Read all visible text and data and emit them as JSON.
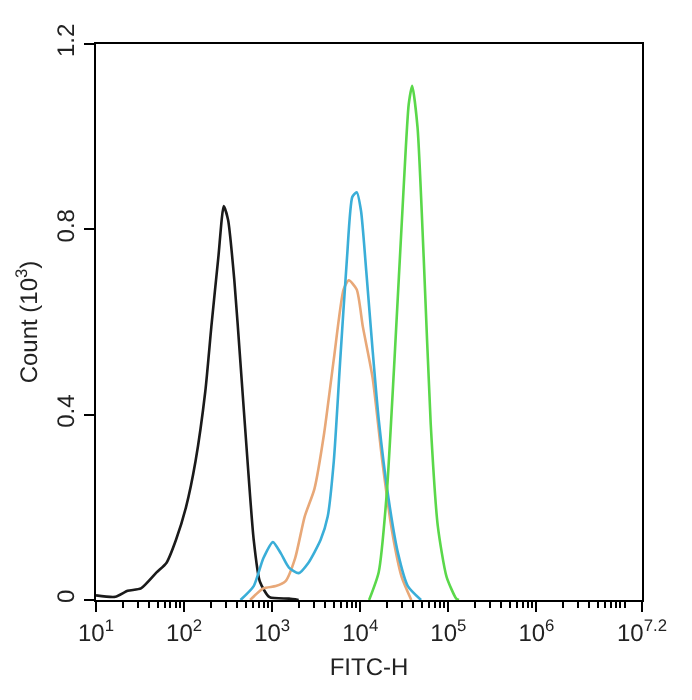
{
  "chart_data": {
    "type": "line",
    "xlabel": "FITC-H",
    "ylabel": "Count (10$^{3}$)",
    "log": "x",
    "xlim": [
      10,
      15800000
    ],
    "ylim": [
      0,
      1.2
    ],
    "xticks": [
      {
        "value": 10,
        "label": "10$^{1}$"
      },
      {
        "value": 100,
        "label": "10$^{2}$"
      },
      {
        "value": 1000,
        "label": "10$^{3}$"
      },
      {
        "value": 10000,
        "label": "10$^{4}$"
      },
      {
        "value": 100000,
        "label": "10$^{5}$"
      },
      {
        "value": 1000000,
        "label": "10$^{6}$"
      },
      {
        "value": 15800000,
        "label": "10$^{7.2}$"
      }
    ],
    "yticks": [
      0,
      0.4,
      0.8,
      1.2
    ],
    "marker": "none",
    "line_style": "solid",
    "series": [
      {
        "color": "#1a1a1a",
        "x": [
          10,
          16.6,
          22.9,
          32.4,
          49,
          63,
          81,
          105,
          135,
          174,
          204,
          245,
          282,
          316,
          372,
          437,
          525,
          617,
          724,
          933,
          1550,
          2000
        ],
        "values": [
          0.01,
          0.007,
          0.02,
          0.025,
          0.06,
          0.08,
          0.13,
          0.2,
          0.3,
          0.45,
          0.59,
          0.74,
          0.85,
          0.82,
          0.69,
          0.51,
          0.3,
          0.13,
          0.04,
          0.006,
          0.003,
          0
        ]
      },
      {
        "color": "#e8a878",
        "x": [
          562,
          794,
          1100,
          1410,
          1820,
          2340,
          3020,
          3890,
          5010,
          6460,
          7410,
          9120,
          10700,
          13800,
          17800,
          22900,
          29500,
          38000
        ],
        "values": [
          0,
          0.025,
          0.03,
          0.04,
          0.09,
          0.18,
          0.24,
          0.36,
          0.52,
          0.67,
          0.69,
          0.67,
          0.59,
          0.48,
          0.3,
          0.15,
          0.05,
          0
        ]
      },
      {
        "color": "#3aaed8",
        "x": [
          437,
          617,
          794,
          1020,
          1260,
          1550,
          2000,
          2570,
          3550,
          4270,
          5010,
          5890,
          7080,
          8130,
          9120,
          10200,
          11700,
          13800,
          16200,
          20900,
          26900,
          34700,
          49000
        ],
        "values": [
          0,
          0.03,
          0.09,
          0.125,
          0.1,
          0.07,
          0.058,
          0.08,
          0.13,
          0.18,
          0.3,
          0.51,
          0.74,
          0.87,
          0.88,
          0.84,
          0.71,
          0.54,
          0.39,
          0.22,
          0.1,
          0.03,
          0
        ]
      },
      {
        "color": "#5ad84a",
        "x": [
          12600,
          16200,
          20000,
          24500,
          30900,
          35500,
          38900,
          44700,
          52500,
          63100,
          75900,
          95500,
          123000,
          132000
        ],
        "values": [
          0,
          0.06,
          0.23,
          0.52,
          0.88,
          1.07,
          1.11,
          1.02,
          0.74,
          0.38,
          0.16,
          0.05,
          0.003,
          0
        ]
      }
    ]
  }
}
